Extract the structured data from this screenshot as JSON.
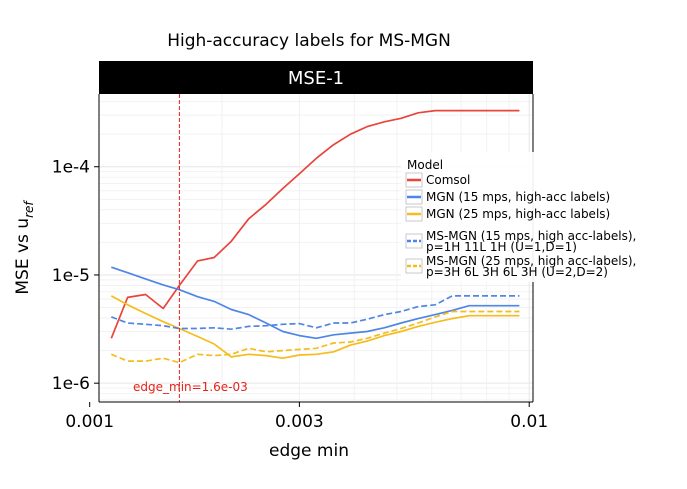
{
  "chart_data": {
    "type": "line",
    "title": "High-accuracy labels for MS-MGN",
    "panel_title": "MSE-1",
    "xlabel": "edge min",
    "ylabel_main": "MSE vs u",
    "ylabel_sub": "ref",
    "x_scale": "log",
    "y_scale": "log",
    "xlim": [
      0.00105,
      0.0102
    ],
    "ylim": [
      6.7e-07,
      0.00047
    ],
    "x_ticks": [
      {
        "value": 0.001,
        "label": "0.001"
      },
      {
        "value": 0.003,
        "label": "0.003"
      },
      {
        "value": 0.01,
        "label": "0.01"
      }
    ],
    "y_ticks": [
      {
        "value": 1e-06,
        "label": "1e-6"
      },
      {
        "value": 1e-05,
        "label": "1e-5"
      },
      {
        "value": 0.0001,
        "label": "1e-4"
      }
    ],
    "vline": {
      "x": 0.0016,
      "label": "edge_min=1.6e-03",
      "color": "#e8211a"
    },
    "legend": {
      "title": "Model",
      "placement": "right"
    },
    "series": [
      {
        "name": "Comsol",
        "color": "#e8453c",
        "dash": "solid",
        "x": [
          0.00112,
          0.00122,
          0.00134,
          0.00147,
          0.0016,
          0.00176,
          0.00192,
          0.0021,
          0.0023,
          0.00252,
          0.00275,
          0.003,
          0.00328,
          0.00359,
          0.00392,
          0.00428,
          0.00468,
          0.00511,
          0.00559,
          0.00611,
          0.00668,
          0.0073,
          0.00797,
          0.0087,
          0.0095
        ],
        "y": [
          2.6e-06,
          6.2e-06,
          6.6e-06,
          4.9e-06,
          8e-06,
          1.35e-05,
          1.45e-05,
          2.05e-05,
          3.3e-05,
          4.5e-05,
          6.3e-05,
          8.6e-05,
          0.00012,
          0.00016,
          0.0002,
          0.000235,
          0.00026,
          0.00028,
          0.000315,
          0.00033,
          0.00033,
          0.00033,
          0.00033,
          0.00033,
          0.00033
        ]
      },
      {
        "name": "MGN (15 mps, high-acc labels)",
        "color": "#4f86e6",
        "dash": "solid",
        "x": [
          0.00112,
          0.00122,
          0.00134,
          0.00147,
          0.0016,
          0.00176,
          0.00192,
          0.0021,
          0.0023,
          0.00252,
          0.00275,
          0.003,
          0.00328,
          0.00359,
          0.00392,
          0.00428,
          0.00468,
          0.00511,
          0.00559,
          0.00611,
          0.00668,
          0.0073,
          0.00797,
          0.0087,
          0.0095
        ],
        "y": [
          1.18e-05,
          1.05e-05,
          9.2e-06,
          8.1e-06,
          7.3e-06,
          6.3e-06,
          5.7e-06,
          4.8e-06,
          4.3e-06,
          3.6e-06,
          3e-06,
          2.75e-06,
          2.6e-06,
          2.8e-06,
          2.9e-06,
          3e-06,
          3.25e-06,
          3.6e-06,
          3.95e-06,
          4.3e-06,
          4.7e-06,
          5.2e-06,
          5.2e-06,
          5.2e-06,
          5.2e-06
        ]
      },
      {
        "name": "MGN (25 mps, high-acc labels)",
        "color": "#f4bc1c",
        "dash": "solid",
        "x": [
          0.00112,
          0.00122,
          0.00134,
          0.00147,
          0.0016,
          0.00176,
          0.00192,
          0.0021,
          0.0023,
          0.00252,
          0.00275,
          0.003,
          0.00328,
          0.00359,
          0.00392,
          0.00428,
          0.00468,
          0.00511,
          0.00559,
          0.00611,
          0.00668,
          0.0073,
          0.00797,
          0.0087,
          0.0095
        ],
        "y": [
          6.4e-06,
          5.3e-06,
          4.4e-06,
          3.7e-06,
          3.2e-06,
          2.7e-06,
          2.3e-06,
          1.75e-06,
          1.85e-06,
          1.8e-06,
          1.7e-06,
          1.82e-06,
          1.85e-06,
          1.95e-06,
          2.25e-06,
          2.45e-06,
          2.75e-06,
          3e-06,
          3.35e-06,
          3.65e-06,
          3.95e-06,
          4.2e-06,
          4.2e-06,
          4.2e-06,
          4.2e-06
        ]
      },
      {
        "name": "MS-MGN (15 mps, high acc-labels), p=1H 11L 1H (U=1,D=1)",
        "legend_lines": [
          "MS-MGN (15 mps, high acc-labels),",
          "p=1H 11L 1H (U=1,D=1)"
        ],
        "color": "#4f86e6",
        "dash": "dashed",
        "x": [
          0.00112,
          0.00122,
          0.00134,
          0.00147,
          0.0016,
          0.00176,
          0.00192,
          0.0021,
          0.0023,
          0.00252,
          0.00275,
          0.003,
          0.00328,
          0.00359,
          0.00392,
          0.00428,
          0.00468,
          0.00511,
          0.00559,
          0.00611,
          0.00668,
          0.0073,
          0.00797,
          0.0087,
          0.0095
        ],
        "y": [
          4.1e-06,
          3.6e-06,
          3.5e-06,
          3.4e-06,
          3.2e-06,
          3.2e-06,
          3.25e-06,
          3.15e-06,
          3.35e-06,
          3.4e-06,
          3.5e-06,
          3.55e-06,
          3.25e-06,
          3.6e-06,
          3.6e-06,
          3.9e-06,
          4.3e-06,
          4.6e-06,
          5.1e-06,
          5.3e-06,
          6.4e-06,
          6.4e-06,
          6.4e-06,
          6.4e-06,
          6.4e-06
        ]
      },
      {
        "name": "MS-MGN (25 mps, high acc-labels), p=3H 6L 3H 6L 3H (U=2,D=2)",
        "legend_lines": [
          "MS-MGN (25 mps, high acc-labels),",
          "p=3H 6L 3H 6L 3H (U=2,D=2)"
        ],
        "color": "#f4bc1c",
        "dash": "dashed",
        "x": [
          0.00112,
          0.00122,
          0.00134,
          0.00147,
          0.0016,
          0.00176,
          0.00192,
          0.0021,
          0.0023,
          0.00252,
          0.00275,
          0.003,
          0.00328,
          0.00359,
          0.00392,
          0.00428,
          0.00468,
          0.00511,
          0.00559,
          0.00611,
          0.00668,
          0.0073,
          0.00797,
          0.0087,
          0.0095
        ],
        "y": [
          1.85e-06,
          1.6e-06,
          1.6e-06,
          1.7e-06,
          1.55e-06,
          1.85e-06,
          1.8e-06,
          1.85e-06,
          2.1e-06,
          1.95e-06,
          2e-06,
          2.05e-06,
          2.1e-06,
          2.35e-06,
          2.4e-06,
          2.6e-06,
          2.9e-06,
          3.2e-06,
          3.6e-06,
          4.1e-06,
          4.6e-06,
          4.6e-06,
          4.6e-06,
          4.6e-06,
          4.6e-06
        ]
      }
    ]
  }
}
